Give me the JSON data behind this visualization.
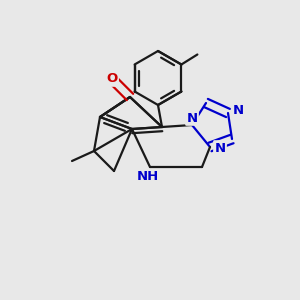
{
  "bg_color": "#e8e8e8",
  "bond_color": "#1a1a1a",
  "nitrogen_color": "#0000cc",
  "oxygen_color": "#cc0000",
  "line_width": 1.6,
  "font_size": 9.5,
  "xlim": [
    -1.5,
    1.5
  ],
  "ylim": [
    -1.5,
    1.5
  ]
}
